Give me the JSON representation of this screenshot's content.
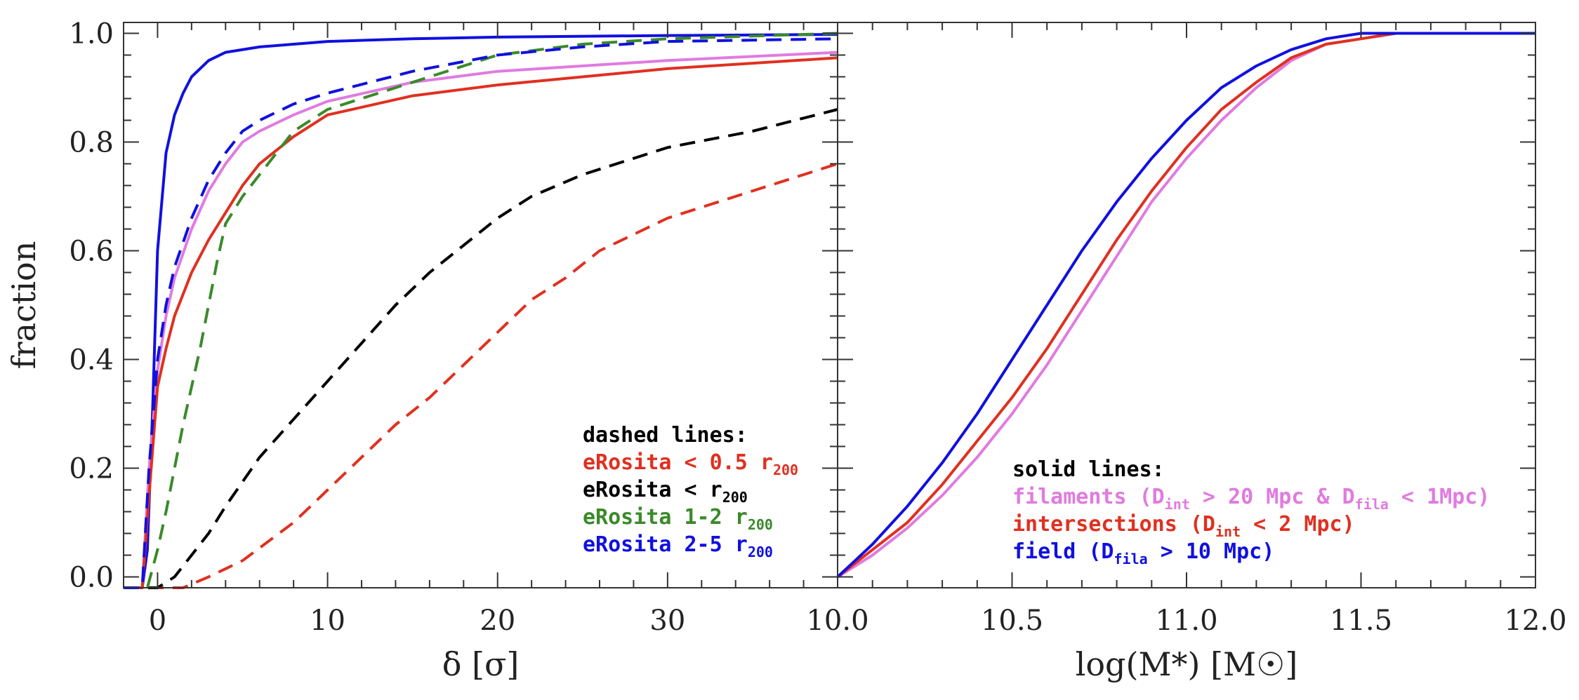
{
  "chart_data": [
    {
      "type": "line",
      "panel": "left",
      "xlabel": "δ [σ]",
      "ylabel": "fraction",
      "xlim": [
        -2,
        40
      ],
      "ylim": [
        -0.02,
        1.02
      ],
      "xticks": [
        0,
        10,
        20,
        30
      ],
      "xtick_labels": [
        "0",
        "10",
        "20",
        "30"
      ],
      "yticks": [
        0.0,
        0.2,
        0.4,
        0.6,
        0.8,
        1.0
      ],
      "ytick_labels": [
        "0.0",
        "0.2",
        "0.4",
        "0.6",
        "0.8",
        "1.0"
      ],
      "legend_title": "dashed lines:",
      "legend_position": "bottom-right",
      "series": [
        {
          "name": "field (solid)",
          "color": "#1010e0",
          "dash": "solid",
          "in_legend": false,
          "x": [
            -2,
            -0.9,
            -0.6,
            -0.3,
            0,
            0.5,
            1,
            1.5,
            2,
            3,
            4,
            6,
            8,
            10,
            15,
            20,
            30,
            40
          ],
          "y": [
            -0.02,
            -0.02,
            0.05,
            0.3,
            0.6,
            0.78,
            0.85,
            0.89,
            0.92,
            0.95,
            0.965,
            0.975,
            0.98,
            0.985,
            0.99,
            0.993,
            0.996,
            0.998
          ]
        },
        {
          "name": "filaments (solid)",
          "color": "#e07be0",
          "dash": "solid",
          "in_legend": false,
          "x": [
            -2,
            -0.9,
            -0.5,
            0,
            0.5,
            1,
            2,
            3,
            4,
            5,
            6,
            8,
            10,
            15,
            20,
            30,
            40
          ],
          "y": [
            -0.02,
            -0.02,
            0.2,
            0.38,
            0.48,
            0.55,
            0.64,
            0.71,
            0.76,
            0.8,
            0.82,
            0.85,
            0.875,
            0.91,
            0.93,
            0.95,
            0.965
          ]
        },
        {
          "name": "intersections (solid)",
          "color": "#e03020",
          "dash": "solid",
          "in_legend": false,
          "x": [
            -2,
            -0.9,
            -0.5,
            0,
            0.5,
            1,
            2,
            3,
            4,
            5,
            6,
            8,
            10,
            15,
            20,
            25,
            30,
            40
          ],
          "y": [
            -0.02,
            -0.02,
            0.15,
            0.35,
            0.42,
            0.48,
            0.56,
            0.62,
            0.67,
            0.72,
            0.76,
            0.81,
            0.85,
            0.885,
            0.905,
            0.92,
            0.935,
            0.955
          ]
        },
        {
          "name": "eRosita < 0.5 r200",
          "label_main": "eRosita < 0.5 r",
          "label_sub": "200",
          "color": "#e03020",
          "dash": "dashed",
          "in_legend": true,
          "x": [
            -2,
            1.5,
            3,
            5,
            8,
            10,
            12,
            14,
            16,
            18,
            20,
            22,
            24,
            26,
            28,
            30,
            32,
            34,
            36,
            38,
            40
          ],
          "y": [
            -0.02,
            -0.02,
            0.0,
            0.03,
            0.1,
            0.16,
            0.22,
            0.28,
            0.33,
            0.39,
            0.45,
            0.51,
            0.55,
            0.6,
            0.63,
            0.66,
            0.68,
            0.7,
            0.72,
            0.74,
            0.76
          ]
        },
        {
          "name": "eRosita < r200",
          "label_main": "eRosita < r",
          "label_sub": "200",
          "color": "#000000",
          "dash": "dashed",
          "in_legend": true,
          "x": [
            -2,
            0,
            1,
            2,
            3,
            4,
            6,
            8,
            10,
            12,
            14,
            16,
            18,
            20,
            22,
            25,
            28,
            30,
            35,
            40
          ],
          "y": [
            -0.02,
            -0.02,
            0.0,
            0.04,
            0.08,
            0.13,
            0.22,
            0.29,
            0.36,
            0.43,
            0.5,
            0.56,
            0.61,
            0.66,
            0.7,
            0.74,
            0.77,
            0.79,
            0.82,
            0.86
          ]
        },
        {
          "name": "eRosita 1-2 r200",
          "label_main": "eRosita 1-2 r",
          "label_sub": "200",
          "color": "#3a8a2a",
          "dash": "dashed",
          "in_legend": true,
          "x": [
            -2,
            -0.6,
            0,
            0.5,
            1,
            1.5,
            2,
            2.5,
            3,
            3.5,
            4,
            5,
            6,
            7,
            8,
            10,
            12,
            15,
            18,
            20,
            25,
            30,
            40
          ],
          "y": [
            -0.02,
            -0.02,
            0.05,
            0.12,
            0.2,
            0.28,
            0.35,
            0.42,
            0.5,
            0.58,
            0.65,
            0.7,
            0.74,
            0.78,
            0.82,
            0.86,
            0.88,
            0.91,
            0.94,
            0.96,
            0.98,
            0.99,
            1.0
          ]
        },
        {
          "name": "eRosita 2-5 r200",
          "label_main": "eRosita 2-5 r",
          "label_sub": "200",
          "color": "#1010e0",
          "dash": "dashed",
          "in_legend": true,
          "x": [
            -2,
            -0.9,
            -0.5,
            0,
            0.5,
            1,
            2,
            3,
            4,
            5,
            6,
            8,
            10,
            15,
            20,
            25,
            30,
            40
          ],
          "y": [
            -0.02,
            -0.02,
            0.2,
            0.4,
            0.5,
            0.57,
            0.66,
            0.73,
            0.78,
            0.82,
            0.84,
            0.87,
            0.89,
            0.93,
            0.96,
            0.975,
            0.985,
            0.99
          ]
        }
      ]
    },
    {
      "type": "line",
      "panel": "right",
      "xlabel": "log(M*) [M☉]",
      "ylabel": "",
      "xlim": [
        10.0,
        12.0
      ],
      "ylim": [
        -0.02,
        1.02
      ],
      "xticks": [
        10.0,
        10.5,
        11.0,
        11.5,
        12.0
      ],
      "xtick_labels": [
        "10.0",
        "10.5",
        "11.0",
        "11.5",
        "12.0"
      ],
      "legend_title": "solid lines:",
      "legend_position": "bottom-center",
      "series": [
        {
          "name": "filaments (Dint > 20 Mpc & Dfila < 1Mpc)",
          "color": "#e07be0",
          "dash": "solid",
          "in_legend": true,
          "label_parts": [
            [
              "filaments (D",
              "n"
            ],
            [
              "int",
              "s"
            ],
            [
              " > 20  Mpc & D",
              "n"
            ],
            [
              "fila",
              "s"
            ],
            [
              " < 1Mpc)",
              "n"
            ]
          ],
          "x": [
            10.0,
            10.05,
            10.1,
            10.2,
            10.3,
            10.4,
            10.5,
            10.6,
            10.7,
            10.8,
            10.9,
            11.0,
            11.1,
            11.2,
            11.3,
            11.4,
            11.5,
            11.6,
            11.8,
            12.0
          ],
          "y": [
            0.0,
            0.02,
            0.04,
            0.09,
            0.15,
            0.22,
            0.3,
            0.39,
            0.49,
            0.59,
            0.69,
            0.77,
            0.84,
            0.9,
            0.95,
            0.98,
            0.99,
            1.0,
            1.0,
            1.0
          ]
        },
        {
          "name": "intersections (Dint < 2 Mpc)",
          "color": "#e03020",
          "dash": "solid",
          "in_legend": true,
          "label_parts": [
            [
              "intersections (D",
              "n"
            ],
            [
              "int",
              "s"
            ],
            [
              " < 2 Mpc)",
              "n"
            ]
          ],
          "x": [
            10.0,
            10.05,
            10.1,
            10.2,
            10.3,
            10.4,
            10.5,
            10.6,
            10.7,
            10.8,
            10.9,
            11.0,
            11.1,
            11.2,
            11.3,
            11.4,
            11.5,
            11.6,
            11.8,
            12.0
          ],
          "y": [
            0.0,
            0.025,
            0.05,
            0.1,
            0.17,
            0.25,
            0.33,
            0.42,
            0.52,
            0.62,
            0.71,
            0.79,
            0.86,
            0.91,
            0.955,
            0.98,
            0.99,
            1.0,
            1.0,
            1.0
          ]
        },
        {
          "name": "field (Dfila > 10 Mpc)",
          "color": "#1010e0",
          "dash": "solid",
          "in_legend": true,
          "label_parts": [
            [
              "field (D",
              "n"
            ],
            [
              "fila",
              "s"
            ],
            [
              " > 10 Mpc)",
              "n"
            ]
          ],
          "x": [
            10.0,
            10.05,
            10.1,
            10.2,
            10.3,
            10.4,
            10.5,
            10.6,
            10.7,
            10.8,
            10.9,
            11.0,
            11.1,
            11.2,
            11.3,
            11.4,
            11.5,
            11.6,
            11.8,
            12.0
          ],
          "y": [
            0.0,
            0.03,
            0.06,
            0.13,
            0.21,
            0.3,
            0.4,
            0.5,
            0.6,
            0.69,
            0.77,
            0.84,
            0.9,
            0.94,
            0.97,
            0.99,
            1.0,
            1.0,
            1.0,
            1.0
          ]
        }
      ]
    }
  ]
}
